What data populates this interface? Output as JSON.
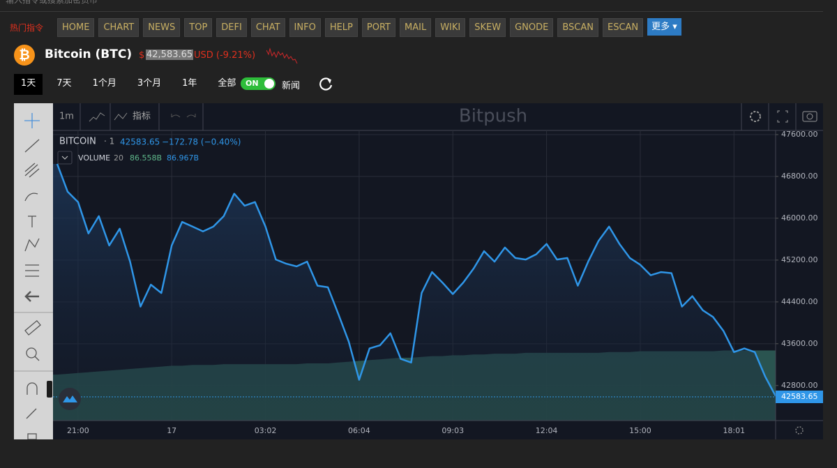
{
  "search_placeholder": "输入指令或搜索加密货币",
  "hot_label": "热门指令",
  "nav": [
    "HOME",
    "CHART",
    "NEWS",
    "TOP",
    "DEFI",
    "CHAT",
    "INFO",
    "HELP",
    "PORT",
    "MAIL",
    "WIKI",
    "SKEW",
    "GNODE",
    "BSCAN",
    "ESCAN"
  ],
  "more": "更多",
  "coin": {
    "icon": "₿",
    "name": "Bitcoin (BTC)",
    "currency_sign": "$",
    "price": "42,583.65",
    "change": "USD (-9.21%)"
  },
  "ranges": [
    "1天",
    "7天",
    "1个月",
    "3个月",
    "1年",
    "全部"
  ],
  "toggle": "ON",
  "news": "新闻",
  "toolbar": {
    "interval": "1m",
    "indicators": "指标"
  },
  "watermark": "Bitpush",
  "legend": {
    "interval": "· 1",
    "price": "42583.65",
    "change": "−172.78 (−0.40%)",
    "volume_period": "20",
    "volume_a": "86.558B",
    "volume_b": "86.967B"
  },
  "chart_data": {
    "type": "line",
    "categories": [
      null,
      null,
      "21:00",
      null,
      null,
      null,
      null,
      null,
      null,
      null,
      null,
      "17",
      null,
      null,
      null,
      null,
      null,
      null,
      null,
      null,
      "03:02",
      null,
      null,
      null,
      null,
      null,
      null,
      null,
      null,
      "06:04",
      null,
      null,
      null,
      null,
      null,
      null,
      null,
      null,
      "09:03",
      null,
      null,
      null,
      null,
      null,
      null,
      null,
      null,
      "12:04",
      null,
      null,
      null,
      null,
      null,
      null,
      null,
      null,
      "15:00",
      null,
      null,
      null,
      null,
      null,
      null,
      null,
      null,
      "18:01",
      null,
      null,
      null,
      null
    ],
    "series": [
      {
        "name": "BITCOIN",
        "color": "#2f96e8",
        "values": [
          47040,
          46510,
          46310,
          45710,
          46040,
          45480,
          45800,
          45170,
          44310,
          44730,
          44570,
          45480,
          45930,
          45840,
          45750,
          45840,
          46040,
          46470,
          46240,
          46310,
          45840,
          45210,
          45130,
          45080,
          45170,
          44710,
          44680,
          44170,
          43640,
          42910,
          43510,
          43570,
          43800,
          43310,
          43240,
          44570,
          44970,
          44770,
          44550,
          44770,
          45040,
          45370,
          45170,
          45440,
          45240,
          45210,
          45310,
          45510,
          45210,
          45240,
          44710,
          45170,
          45570,
          45840,
          45510,
          45240,
          45110,
          44910,
          44970,
          44950,
          44310,
          44510,
          44240,
          44110,
          43840,
          43440,
          43510,
          43440,
          42970,
          42600
        ]
      },
      {
        "name": "VOLUME",
        "color": "#2e5b55",
        "axis": "y2",
        "values": [
          57,
          58,
          59,
          60,
          61,
          62,
          63,
          64,
          65,
          66,
          67,
          68,
          68,
          69,
          69,
          69,
          70,
          70,
          70,
          70,
          70,
          70,
          70,
          70,
          71,
          71,
          71,
          72,
          73,
          74,
          75,
          76,
          77,
          78,
          78,
          79,
          80,
          80,
          81,
          81,
          82,
          82,
          83,
          83,
          83,
          84,
          84,
          84,
          84,
          84,
          84,
          84,
          84,
          85,
          85,
          85,
          86,
          86,
          86,
          86,
          86,
          86,
          86,
          86,
          87,
          87,
          87,
          87,
          87,
          87
        ]
      }
    ],
    "ylim": [
      42130,
      47680
    ],
    "yticks": [
      {
        "value": 42800,
        "label": "42800.00"
      },
      {
        "value": 43600,
        "label": "43600.00"
      },
      {
        "value": 44400,
        "label": "44400.00"
      },
      {
        "value": 45200,
        "label": "45200.00"
      },
      {
        "value": 46000,
        "label": "46000.00"
      },
      {
        "value": 46800,
        "label": "46800.00"
      },
      {
        "value": 47600,
        "label": "47600.00"
      }
    ],
    "y2lim": [
      0,
      360
    ],
    "current_price": 42583.65,
    "grid": true
  }
}
